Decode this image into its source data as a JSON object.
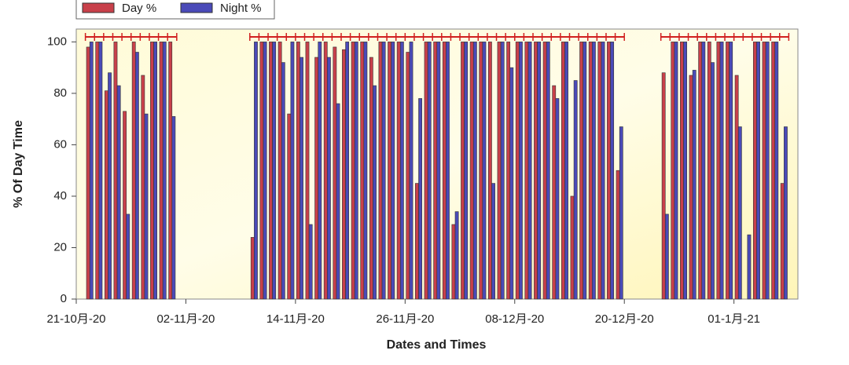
{
  "chart_data": {
    "type": "bar",
    "x_label": "Dates and Times",
    "y_label": "% Of Day Time",
    "categories": [
      "21-10月-20",
      null,
      null,
      null,
      null,
      null,
      null,
      null,
      null,
      null,
      null,
      null,
      "02-11月-20",
      null,
      null,
      null,
      null,
      null,
      null,
      null,
      null,
      null,
      null,
      null,
      "14-11月-20",
      null,
      null,
      null,
      null,
      null,
      null,
      null,
      null,
      null,
      null,
      null,
      "26-11月-20",
      null,
      null,
      null,
      null,
      null,
      null,
      null,
      null,
      null,
      null,
      null,
      "08-12月-20",
      null,
      null,
      null,
      null,
      null,
      null,
      null,
      null,
      null,
      null,
      null,
      "20-12月-20",
      null,
      null,
      null,
      null,
      null,
      null,
      null,
      null,
      null,
      null,
      null,
      "01-1月-21",
      null,
      null,
      null,
      null,
      null,
      null
    ],
    "series": [
      {
        "name": "Day %",
        "color": "#c8404a",
        "values": [
          null,
          98,
          100,
          81,
          100,
          73,
          100,
          87,
          100,
          100,
          100,
          null,
          null,
          null,
          null,
          null,
          null,
          null,
          null,
          24,
          100,
          100,
          100,
          72,
          100,
          100,
          94,
          100,
          98,
          97,
          100,
          100,
          94,
          100,
          100,
          100,
          96,
          45,
          100,
          100,
          100,
          29,
          100,
          100,
          100,
          100,
          100,
          100,
          100,
          100,
          100,
          100,
          83,
          100,
          40,
          100,
          100,
          100,
          100,
          50,
          null,
          null,
          null,
          null,
          88,
          100,
          100,
          87,
          100,
          100,
          100,
          100,
          87,
          null,
          100,
          100,
          100,
          45,
          null
        ]
      },
      {
        "name": "Night %",
        "color": "#4a4ab8",
        "values": [
          null,
          100,
          100,
          88,
          83,
          33,
          96,
          72,
          100,
          100,
          71,
          null,
          null,
          null,
          null,
          null,
          null,
          null,
          null,
          100,
          100,
          100,
          92,
          100,
          94,
          29,
          100,
          94,
          76,
          100,
          100,
          100,
          83,
          100,
          100,
          100,
          100,
          78,
          100,
          100,
          100,
          34,
          100,
          100,
          100,
          45,
          100,
          90,
          100,
          100,
          100,
          100,
          78,
          100,
          85,
          100,
          100,
          100,
          100,
          67,
          null,
          null,
          null,
          null,
          33,
          100,
          100,
          89,
          100,
          92,
          100,
          100,
          67,
          25,
          100,
          100,
          100,
          67,
          null
        ]
      }
    ],
    "ylim": [
      0,
      105
    ],
    "yticks": [
      0,
      20,
      40,
      60,
      80,
      100
    ]
  }
}
